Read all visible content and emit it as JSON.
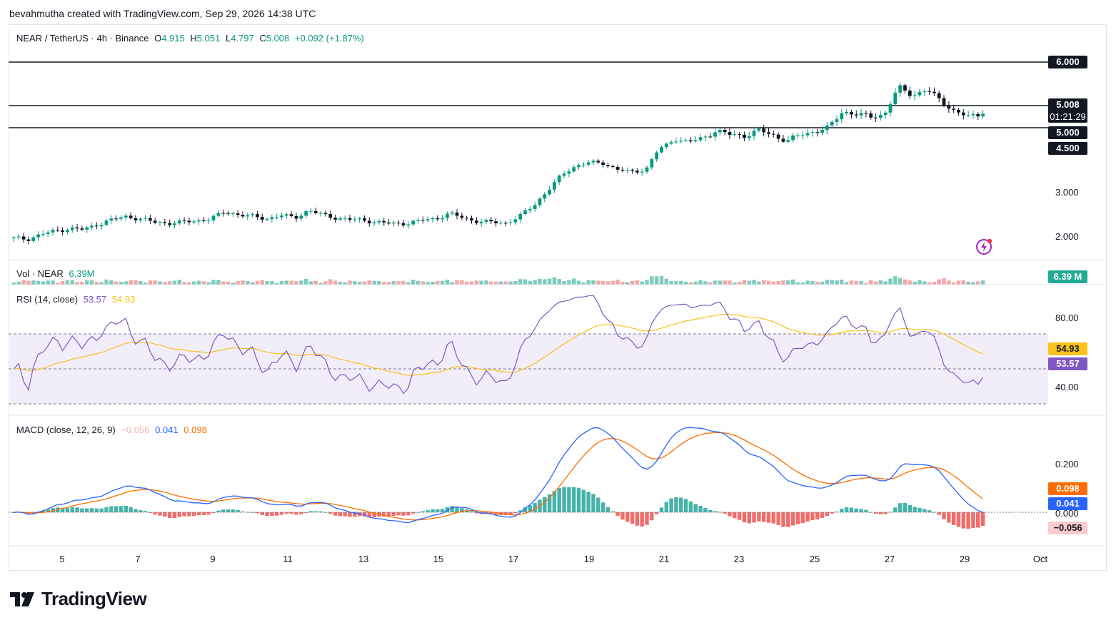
{
  "header": {
    "creator_text": "bevahmutha created with TradingView.com, Sep 29, 2026 14:38 UTC"
  },
  "legend": {
    "symbol": "NEAR / TetherUS · 4h · Binance",
    "o_label": "O",
    "o_value": "4.915",
    "h_label": "H",
    "h_value": "5.051",
    "l_label": "L",
    "l_value": "4.797",
    "c_label": "C",
    "c_value": "5.008",
    "change": "+0.092 (+1.87%)"
  },
  "volume": {
    "label": "Vol · NEAR",
    "value": "6.39M",
    "tag": "6.39 M"
  },
  "rsi": {
    "label": "RSI (14, close)",
    "value": "53.57",
    "ma_value": "54.93",
    "tick_80": "80.00",
    "tick_40": "40.00"
  },
  "macd": {
    "label": "MACD (close, 12, 26, 9)",
    "hist": "−0.056",
    "macd": "0.041",
    "signal": "0.098",
    "tick_02": "0.200",
    "tick_0": "0.000"
  },
  "price_axis": {
    "tag_6": "6.000",
    "tag_last": "5.008",
    "tag_countdown": "01:21:29",
    "tag_5": "5.000",
    "tag_45": "4.500",
    "tick_3": "3.000",
    "tick_2": "2.000"
  },
  "horizontal_lines": [
    6.0,
    5.0,
    4.5
  ],
  "x_axis": [
    "5",
    "7",
    "9",
    "11",
    "13",
    "15",
    "17",
    "19",
    "21",
    "23",
    "25",
    "27",
    "29",
    "Oct"
  ],
  "brand": {
    "name": "TradingView"
  },
  "colors": {
    "up": "#089981",
    "down": "#131722",
    "vol_up": "#7fcbbf",
    "vol_down": "#f5a6a6",
    "rsi": "#7e57c2",
    "rsi_ma": "#f7c21b",
    "macd": "#2962ff",
    "signal": "#ff6d00"
  },
  "chart_data": {
    "type": "candlestick",
    "interval": "4h",
    "x_start": "Sep 4",
    "close_path": [
      1.95,
      1.94,
      2.05,
      2.12,
      2.18,
      2.15,
      2.28,
      2.38,
      2.45,
      2.4,
      2.32,
      2.3,
      2.32,
      2.35,
      2.4,
      2.55,
      2.5,
      2.45,
      2.4,
      2.48,
      2.42,
      2.6,
      2.48,
      2.42,
      2.38,
      2.36,
      2.32,
      2.28,
      2.3,
      2.36,
      2.4,
      2.52,
      2.42,
      2.34,
      2.32,
      2.3,
      2.45,
      2.7,
      3.05,
      3.4,
      3.65,
      3.75,
      3.72,
      3.55,
      3.48,
      3.55,
      4.2,
      4.55,
      4.48,
      4.55,
      4.7,
      4.62,
      4.6,
      4.7,
      4.62,
      4.5,
      4.62,
      4.68,
      4.75,
      5.05,
      5.0,
      4.95,
      5.0,
      5.5,
      5.35,
      5.45,
      5.25,
      5.05,
      4.95,
      5.008
    ],
    "rsi_range": [
      20,
      100
    ],
    "rsi_band": [
      30,
      70
    ],
    "macd_range": [
      -0.15,
      0.45
    ]
  }
}
